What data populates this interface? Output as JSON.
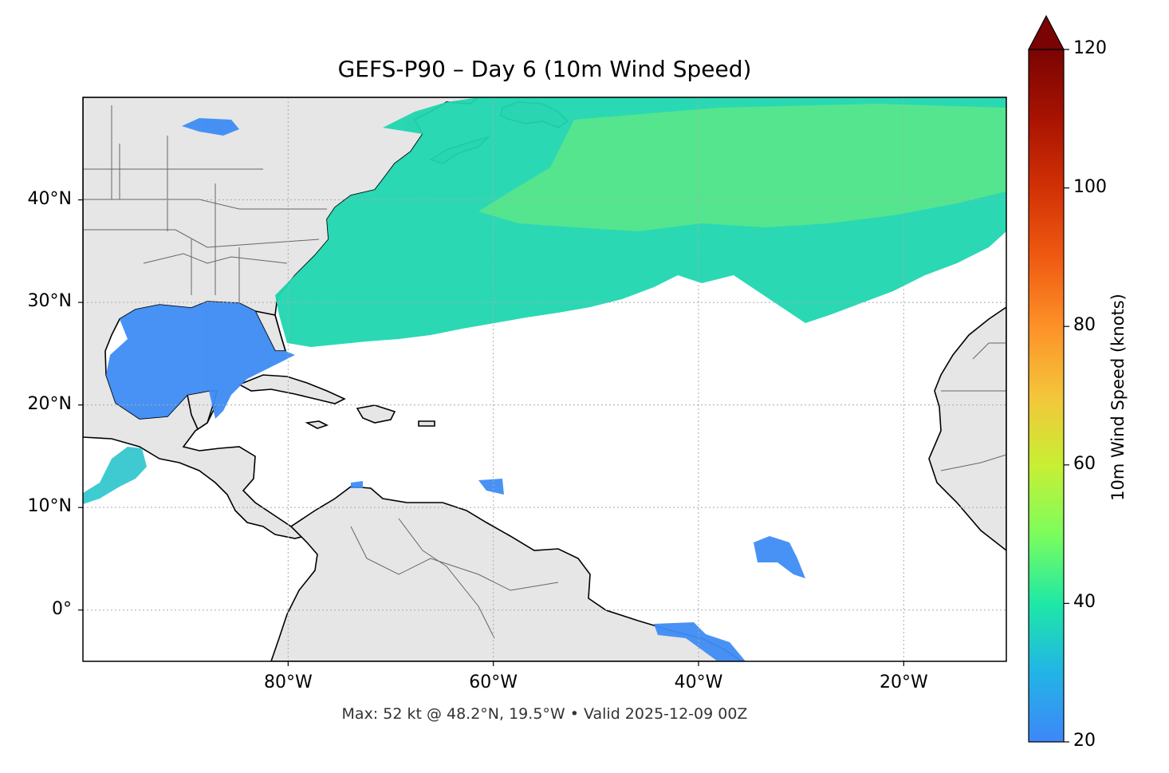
{
  "title": "GEFS-P90 – Day 6 (10m Wind Speed)",
  "footer": "Max: 52 kt @ 48.2°N, 19.5°W • Valid 2025-12-09 00Z",
  "map": {
    "lon_range": [
      -100,
      -10
    ],
    "lat_range": [
      -5,
      50
    ],
    "lon_ticks": [
      {
        "value": -80,
        "label": "80°W"
      },
      {
        "value": -60,
        "label": "60°W"
      },
      {
        "value": -40,
        "label": "40°W"
      },
      {
        "value": -20,
        "label": "20°W"
      }
    ],
    "lat_ticks": [
      {
        "value": 0,
        "label": "0°"
      },
      {
        "value": 10,
        "label": "10°N"
      },
      {
        "value": 20,
        "label": "20°N"
      },
      {
        "value": 30,
        "label": "30°N"
      },
      {
        "value": 40,
        "label": "40°N"
      }
    ],
    "gridlines": true,
    "land_color": "#e6e6e6",
    "ocean_color": "#ffffff"
  },
  "colorbar": {
    "label": "10m Wind Speed (knots)",
    "min": 20,
    "max": 120,
    "extend": "max",
    "colormap": "turbo",
    "ticks": [
      {
        "value": 20,
        "label": "20"
      },
      {
        "value": 40,
        "label": "40"
      },
      {
        "value": 60,
        "label": "60"
      },
      {
        "value": 80,
        "label": "80"
      },
      {
        "value": 100,
        "label": "100"
      },
      {
        "value": 120,
        "label": "120"
      }
    ]
  },
  "max_wind": {
    "value": 52,
    "units": "kt",
    "lat": 48.2,
    "lon": -19.5
  }
}
